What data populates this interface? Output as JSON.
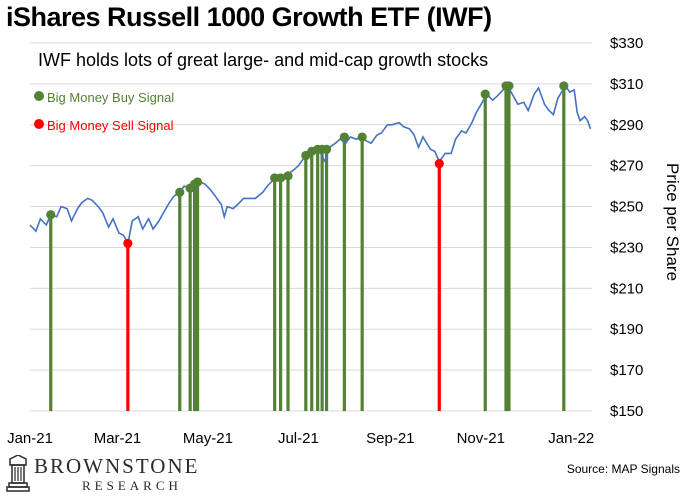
{
  "chart_data": {
    "type": "line",
    "title": "iShares Russell 1000 Growth ETF (IWF)",
    "subtitle": "IWF holds lots of great large- and mid-cap growth stocks",
    "ylabel": "Price per Share",
    "xlabel": "",
    "ylim": [
      150,
      330
    ],
    "y_ticks": [
      "$330",
      "$310",
      "$290",
      "$270",
      "$250",
      "$230",
      "$210",
      "$190",
      "$170",
      "$150"
    ],
    "y_tick_values": [
      330,
      310,
      290,
      270,
      250,
      230,
      210,
      190,
      170,
      150
    ],
    "x_ticks": [
      "Jan-21",
      "Mar-21",
      "May-21",
      "Jul-21",
      "Sep-21",
      "Nov-21",
      "Jan-22"
    ],
    "x_tick_dates": [
      "2021-01-01",
      "2021-03-01",
      "2021-05-01",
      "2021-07-01",
      "2021-09-01",
      "2021-11-01",
      "2022-01-01"
    ],
    "grid": true,
    "colors": {
      "line": "#4472c4",
      "buy": "#548235",
      "sell": "#ff0000",
      "grid": "#d9d9d9"
    },
    "series": [
      {
        "name": "IWF",
        "points": [
          [
            "2021-01-01",
            241
          ],
          [
            "2021-01-05",
            238
          ],
          [
            "2021-01-08",
            244
          ],
          [
            "2021-01-12",
            241
          ],
          [
            "2021-01-15",
            246
          ],
          [
            "2021-01-19",
            245
          ],
          [
            "2021-01-22",
            250
          ],
          [
            "2021-01-26",
            249
          ],
          [
            "2021-01-29",
            243
          ],
          [
            "2021-02-02",
            249
          ],
          [
            "2021-02-05",
            252
          ],
          [
            "2021-02-09",
            254
          ],
          [
            "2021-02-12",
            253
          ],
          [
            "2021-02-16",
            250
          ],
          [
            "2021-02-19",
            247
          ],
          [
            "2021-02-23",
            240
          ],
          [
            "2021-02-26",
            244
          ],
          [
            "2021-03-02",
            237
          ],
          [
            "2021-03-05",
            236
          ],
          [
            "2021-03-08",
            232
          ],
          [
            "2021-03-11",
            243
          ],
          [
            "2021-03-15",
            245
          ],
          [
            "2021-03-18",
            239
          ],
          [
            "2021-03-22",
            244
          ],
          [
            "2021-03-25",
            239
          ],
          [
            "2021-03-29",
            243
          ],
          [
            "2021-04-01",
            247
          ],
          [
            "2021-04-05",
            252
          ],
          [
            "2021-04-08",
            255
          ],
          [
            "2021-04-12",
            257
          ],
          [
            "2021-04-15",
            260
          ],
          [
            "2021-04-19",
            259
          ],
          [
            "2021-04-22",
            258
          ],
          [
            "2021-04-26",
            262
          ],
          [
            "2021-04-29",
            261
          ],
          [
            "2021-05-03",
            258
          ],
          [
            "2021-05-06",
            255
          ],
          [
            "2021-05-10",
            251
          ],
          [
            "2021-05-12",
            245
          ],
          [
            "2021-05-14",
            250
          ],
          [
            "2021-05-18",
            249
          ],
          [
            "2021-05-21",
            251
          ],
          [
            "2021-05-25",
            254
          ],
          [
            "2021-05-28",
            254
          ],
          [
            "2021-06-02",
            254
          ],
          [
            "2021-06-07",
            257
          ],
          [
            "2021-06-10",
            260
          ],
          [
            "2021-06-14",
            263
          ],
          [
            "2021-06-17",
            265
          ],
          [
            "2021-06-21",
            263
          ],
          [
            "2021-06-24",
            266
          ],
          [
            "2021-06-28",
            268
          ],
          [
            "2021-07-01",
            270
          ],
          [
            "2021-07-06",
            275
          ],
          [
            "2021-07-09",
            277
          ],
          [
            "2021-07-13",
            278
          ],
          [
            "2021-07-16",
            276
          ],
          [
            "2021-07-19",
            272
          ],
          [
            "2021-07-22",
            279
          ],
          [
            "2021-07-26",
            281
          ],
          [
            "2021-07-29",
            283
          ],
          [
            "2021-08-02",
            281
          ],
          [
            "2021-08-05",
            284
          ],
          [
            "2021-08-09",
            283
          ],
          [
            "2021-08-12",
            284
          ],
          [
            "2021-08-16",
            282
          ],
          [
            "2021-08-19",
            281
          ],
          [
            "2021-08-23",
            285
          ],
          [
            "2021-08-26",
            286
          ],
          [
            "2021-08-30",
            290
          ],
          [
            "2021-09-02",
            290
          ],
          [
            "2021-09-07",
            291
          ],
          [
            "2021-09-10",
            289
          ],
          [
            "2021-09-14",
            288
          ],
          [
            "2021-09-17",
            285
          ],
          [
            "2021-09-20",
            279
          ],
          [
            "2021-09-23",
            284
          ],
          [
            "2021-09-28",
            278
          ],
          [
            "2021-10-01",
            277
          ],
          [
            "2021-10-04",
            272
          ],
          [
            "2021-10-08",
            276
          ],
          [
            "2021-10-12",
            276
          ],
          [
            "2021-10-15",
            283
          ],
          [
            "2021-10-19",
            287
          ],
          [
            "2021-10-22",
            286
          ],
          [
            "2021-10-26",
            291
          ],
          [
            "2021-10-29",
            296
          ],
          [
            "2021-11-02",
            301
          ],
          [
            "2021-11-05",
            305
          ],
          [
            "2021-11-09",
            302
          ],
          [
            "2021-11-12",
            304
          ],
          [
            "2021-11-16",
            307
          ],
          [
            "2021-11-19",
            309
          ],
          [
            "2021-11-23",
            304
          ],
          [
            "2021-11-26",
            300
          ],
          [
            "2021-11-30",
            301
          ],
          [
            "2021-12-03",
            297
          ],
          [
            "2021-12-07",
            305
          ],
          [
            "2021-12-10",
            308
          ],
          [
            "2021-12-14",
            300
          ],
          [
            "2021-12-17",
            297
          ],
          [
            "2021-12-20",
            295
          ],
          [
            "2021-12-23",
            303
          ],
          [
            "2021-12-28",
            309
          ],
          [
            "2021-12-31",
            306
          ],
          [
            "2022-01-03",
            307
          ],
          [
            "2022-01-05",
            296
          ],
          [
            "2022-01-07",
            292
          ],
          [
            "2022-01-10",
            294
          ],
          [
            "2022-01-12",
            292
          ],
          [
            "2022-01-14",
            288
          ]
        ]
      }
    ],
    "legend": {
      "placement": "top-left",
      "buy_label": "Big Money Buy Signal",
      "sell_label": "Big Money Sell Signal"
    },
    "buy_signals": [
      [
        "2021-01-15",
        246
      ],
      [
        "2021-04-12",
        257
      ],
      [
        "2021-04-19",
        259
      ],
      [
        "2021-04-22",
        261
      ],
      [
        "2021-04-24",
        262
      ],
      [
        "2021-06-15",
        264
      ],
      [
        "2021-06-19",
        264
      ],
      [
        "2021-06-24",
        265
      ],
      [
        "2021-07-06",
        275
      ],
      [
        "2021-07-10",
        277
      ],
      [
        "2021-07-14",
        278
      ],
      [
        "2021-07-17",
        278
      ],
      [
        "2021-07-20",
        278
      ],
      [
        "2021-08-01",
        284
      ],
      [
        "2021-08-13",
        284
      ],
      [
        "2021-11-04",
        305
      ],
      [
        "2021-11-18",
        309
      ],
      [
        "2021-11-20",
        309
      ],
      [
        "2021-12-27",
        309
      ]
    ],
    "sell_signals": [
      [
        "2021-03-08",
        232
      ],
      [
        "2021-10-04",
        271
      ]
    ]
  },
  "brand": {
    "name": "BROWNSTONE",
    "sub": "RESEARCH"
  },
  "source": "Source: MAP Signals"
}
